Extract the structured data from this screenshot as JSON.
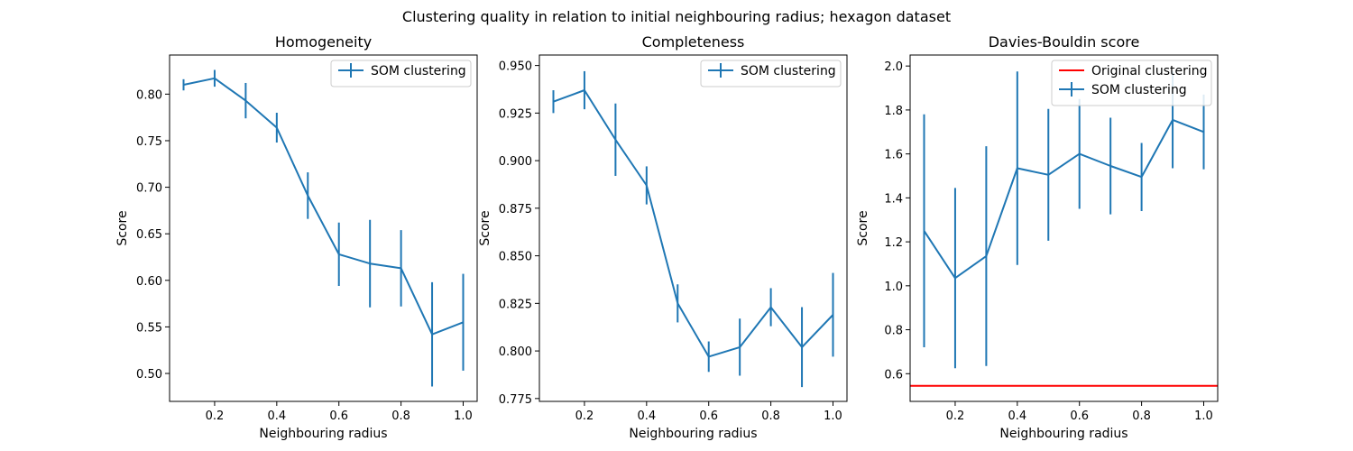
{
  "figure": {
    "suptitle": "Clustering quality in relation to initial neighbouring radius; hexagon dataset"
  },
  "colors": {
    "series": "#1f77b4",
    "reference": "#ff0000",
    "axes": "#000000",
    "legend_border": "#cccccc"
  },
  "chart_data": [
    {
      "type": "line",
      "title": "Homogeneity",
      "xlabel": "Neighbouring radius",
      "ylabel": "Score",
      "xlim": [
        0.055,
        1.045
      ],
      "ylim": [
        0.47,
        0.842
      ],
      "xticks": [
        0.2,
        0.4,
        0.6,
        0.8,
        1.0
      ],
      "xtick_labels": [
        "0.2",
        "0.4",
        "0.6",
        "0.8",
        "1.0"
      ],
      "yticks": [
        0.5,
        0.55,
        0.6,
        0.65,
        0.7,
        0.75,
        0.8
      ],
      "ytick_labels": [
        "0.50",
        "0.55",
        "0.60",
        "0.65",
        "0.70",
        "0.75",
        "0.80"
      ],
      "legend": {
        "position": "upper right",
        "entries": [
          "SOM clustering"
        ]
      },
      "grid": false,
      "series": [
        {
          "name": "SOM clustering",
          "style": "errorbar",
          "x": [
            0.1,
            0.2,
            0.3,
            0.4,
            0.5,
            0.6,
            0.7,
            0.8,
            0.9,
            1.0
          ],
          "y": [
            0.81,
            0.817,
            0.793,
            0.764,
            0.691,
            0.628,
            0.618,
            0.613,
            0.542,
            0.555
          ],
          "yerr": [
            0.006,
            0.009,
            0.019,
            0.016,
            0.025,
            0.034,
            0.047,
            0.041,
            0.056,
            0.052
          ]
        }
      ]
    },
    {
      "type": "line",
      "title": "Completeness",
      "xlabel": "Neighbouring radius",
      "ylabel": "Score",
      "xlim": [
        0.055,
        1.045
      ],
      "ylim": [
        0.7735,
        0.9555
      ],
      "xticks": [
        0.2,
        0.4,
        0.6,
        0.8,
        1.0
      ],
      "xtick_labels": [
        "0.2",
        "0.4",
        "0.6",
        "0.8",
        "1.0"
      ],
      "yticks": [
        0.775,
        0.8,
        0.825,
        0.85,
        0.875,
        0.9,
        0.925,
        0.95
      ],
      "ytick_labels": [
        "0.775",
        "0.800",
        "0.825",
        "0.850",
        "0.875",
        "0.900",
        "0.925",
        "0.950"
      ],
      "legend": {
        "position": "upper right",
        "entries": [
          "SOM clustering"
        ]
      },
      "grid": false,
      "series": [
        {
          "name": "SOM clustering",
          "style": "errorbar",
          "x": [
            0.1,
            0.2,
            0.3,
            0.4,
            0.5,
            0.6,
            0.7,
            0.8,
            0.9,
            1.0
          ],
          "y": [
            0.931,
            0.937,
            0.911,
            0.887,
            0.825,
            0.797,
            0.802,
            0.823,
            0.802,
            0.819
          ],
          "yerr": [
            0.006,
            0.01,
            0.019,
            0.01,
            0.01,
            0.008,
            0.015,
            0.01,
            0.021,
            0.022
          ]
        }
      ]
    },
    {
      "type": "line",
      "title": "Davies-Bouldin score",
      "xlabel": "Neighbouring radius",
      "ylabel": "Score",
      "xlim": [
        0.055,
        1.045
      ],
      "ylim": [
        0.474,
        2.05
      ],
      "xticks": [
        0.2,
        0.4,
        0.6,
        0.8,
        1.0
      ],
      "xtick_labels": [
        "0.2",
        "0.4",
        "0.6",
        "0.8",
        "1.0"
      ],
      "yticks": [
        0.6,
        0.8,
        1.0,
        1.2,
        1.4,
        1.6,
        1.8,
        2.0
      ],
      "ytick_labels": [
        "0.6",
        "0.8",
        "1.0",
        "1.2",
        "1.4",
        "1.6",
        "1.8",
        "2.0"
      ],
      "legend": {
        "position": "upper right",
        "entries": [
          "Original clustering",
          "SOM clustering"
        ]
      },
      "grid": false,
      "reference_line": {
        "name": "Original clustering",
        "y": 0.545
      },
      "series": [
        {
          "name": "SOM clustering",
          "style": "errorbar",
          "x": [
            0.1,
            0.2,
            0.3,
            0.4,
            0.5,
            0.6,
            0.7,
            0.8,
            0.9,
            1.0
          ],
          "y": [
            1.25,
            1.035,
            1.135,
            1.535,
            1.505,
            1.6,
            1.545,
            1.495,
            1.755,
            1.7
          ],
          "yerr": [
            0.53,
            0.41,
            0.5,
            0.44,
            0.3,
            0.25,
            0.22,
            0.155,
            0.22,
            0.17
          ]
        }
      ]
    }
  ]
}
